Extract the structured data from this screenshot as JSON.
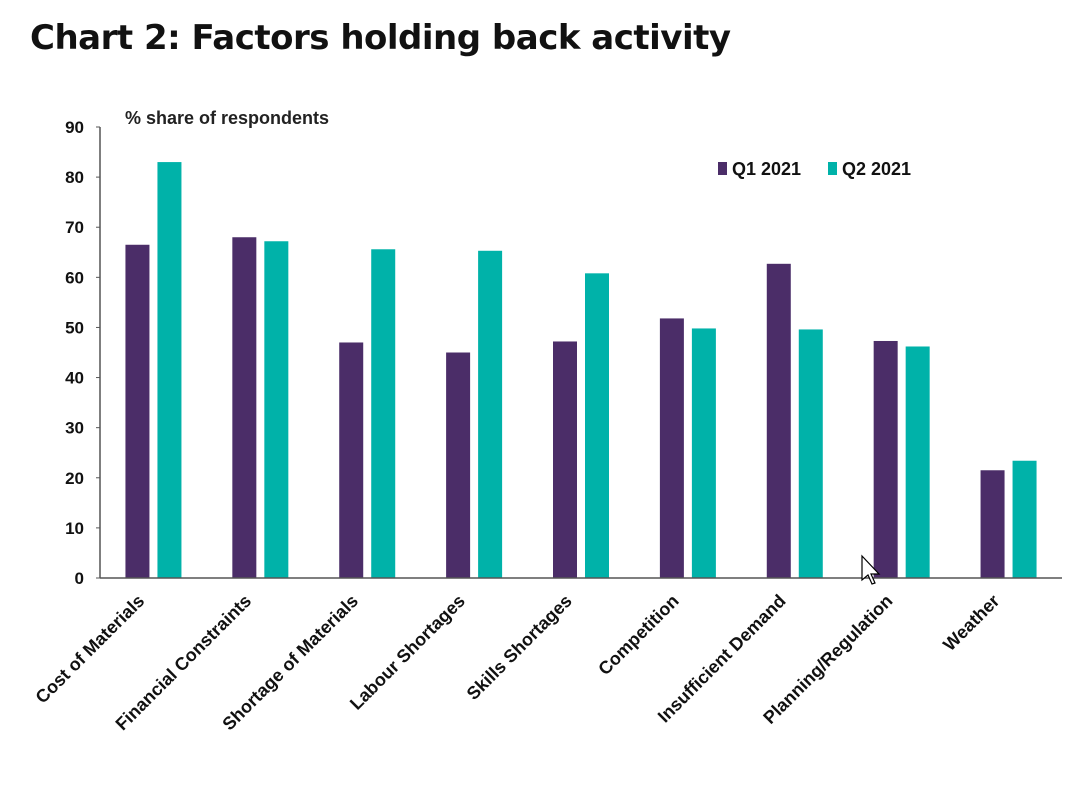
{
  "title": "Chart 2: Factors holding back activity",
  "colors": {
    "q1": "#4b2d68",
    "q2": "#00b2a9",
    "axis": "#555555"
  },
  "chart_data": {
    "type": "bar",
    "title": "Chart 2: Factors holding back activity",
    "ylabel": "% share of respondents",
    "xlabel": "",
    "ylim": [
      0,
      90
    ],
    "yticks": [
      0,
      10,
      20,
      30,
      40,
      50,
      60,
      70,
      80,
      90
    ],
    "legend_position": "top-right",
    "categories": [
      "Cost of Materials",
      "Financial Constraints",
      "Shortage of Materials",
      "Labour Shortages",
      "Skills Shortages",
      "Competition",
      "Insufficient Demand",
      "Planning/Regulation",
      "Weather"
    ],
    "series": [
      {
        "name": "Q1 2021",
        "color": "#4b2d68",
        "values": [
          66.5,
          68,
          47,
          45,
          47.2,
          51.8,
          62.7,
          47.3,
          21.5
        ]
      },
      {
        "name": "Q2 2021",
        "color": "#00b2a9",
        "values": [
          83,
          67.2,
          65.6,
          65.3,
          60.8,
          49.8,
          49.6,
          46.2,
          23.4
        ]
      }
    ]
  }
}
